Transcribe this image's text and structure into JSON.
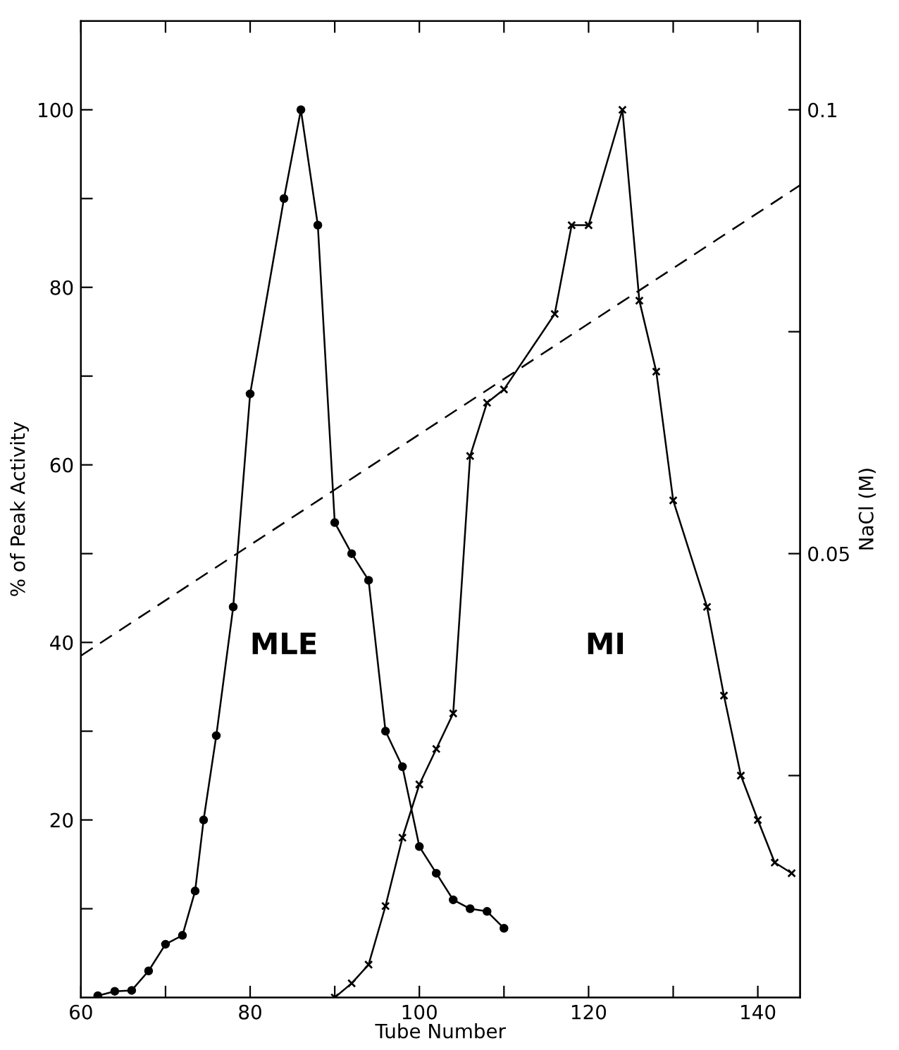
{
  "chart_data": {
    "type": "line",
    "xlabel": "Tube Number",
    "ylabel": "% of Peak Activity",
    "y2label": "NaCl (M)",
    "xlim": [
      60,
      145
    ],
    "xticks": [
      60,
      {
        "value": 70,
        "label": null
      },
      80,
      {
        "value": 90,
        "label": null
      },
      100,
      {
        "value": 110,
        "label": null
      },
      120,
      {
        "value": 130,
        "label": null
      },
      140
    ],
    "ylim": [
      0,
      110
    ],
    "yticks": [
      {
        "value": 10,
        "label": null
      },
      20,
      {
        "value": 30,
        "label": null
      },
      40,
      {
        "value": 50,
        "label": null
      },
      60,
      {
        "value": 70,
        "label": null
      },
      80,
      {
        "value": 90,
        "label": null
      },
      100
    ],
    "y2lim": [
      0,
      0.11
    ],
    "y2ticks": [
      {
        "value": 0.025,
        "label": null
      },
      0.05,
      {
        "value": 0.075,
        "label": null
      },
      0.1
    ],
    "grid": false,
    "legend": false,
    "series": [
      {
        "name": "MLE",
        "color": "#000000",
        "marker": "circle",
        "line_style": "solid",
        "x": [
          62,
          64,
          66,
          68,
          70,
          72,
          73.5,
          74.5,
          76,
          78,
          80,
          84,
          86,
          88,
          90,
          92,
          94,
          96,
          98,
          100,
          102,
          104,
          106,
          108,
          110
        ],
        "values": [
          0.2,
          0.7,
          0.8,
          3,
          6,
          7,
          12,
          20,
          29.5,
          44,
          68,
          90,
          100,
          87,
          53.5,
          50,
          47,
          30,
          26,
          17,
          14,
          11,
          10,
          9.7,
          7.8
        ]
      },
      {
        "name": "MI",
        "color": "#000000",
        "marker": "cross",
        "line_style": "solid",
        "x": [
          90,
          92,
          94,
          96,
          98,
          100,
          102,
          104,
          106,
          108,
          110,
          116,
          118,
          120,
          124,
          126,
          128,
          130,
          134,
          136,
          138,
          140,
          142,
          144
        ],
        "values": [
          0,
          1.6,
          3.7,
          10.3,
          18,
          24,
          28,
          32,
          61,
          67,
          68.5,
          77,
          87,
          87,
          100,
          78.5,
          70.5,
          56,
          44,
          34,
          25,
          20,
          15.2,
          14
        ]
      },
      {
        "type": "line",
        "axis": "y2",
        "color": "#000000",
        "marker": "none",
        "line_style": "dashed",
        "x": [
          60,
          145
        ],
        "values": [
          0.0385,
          0.0915
        ]
      }
    ]
  }
}
